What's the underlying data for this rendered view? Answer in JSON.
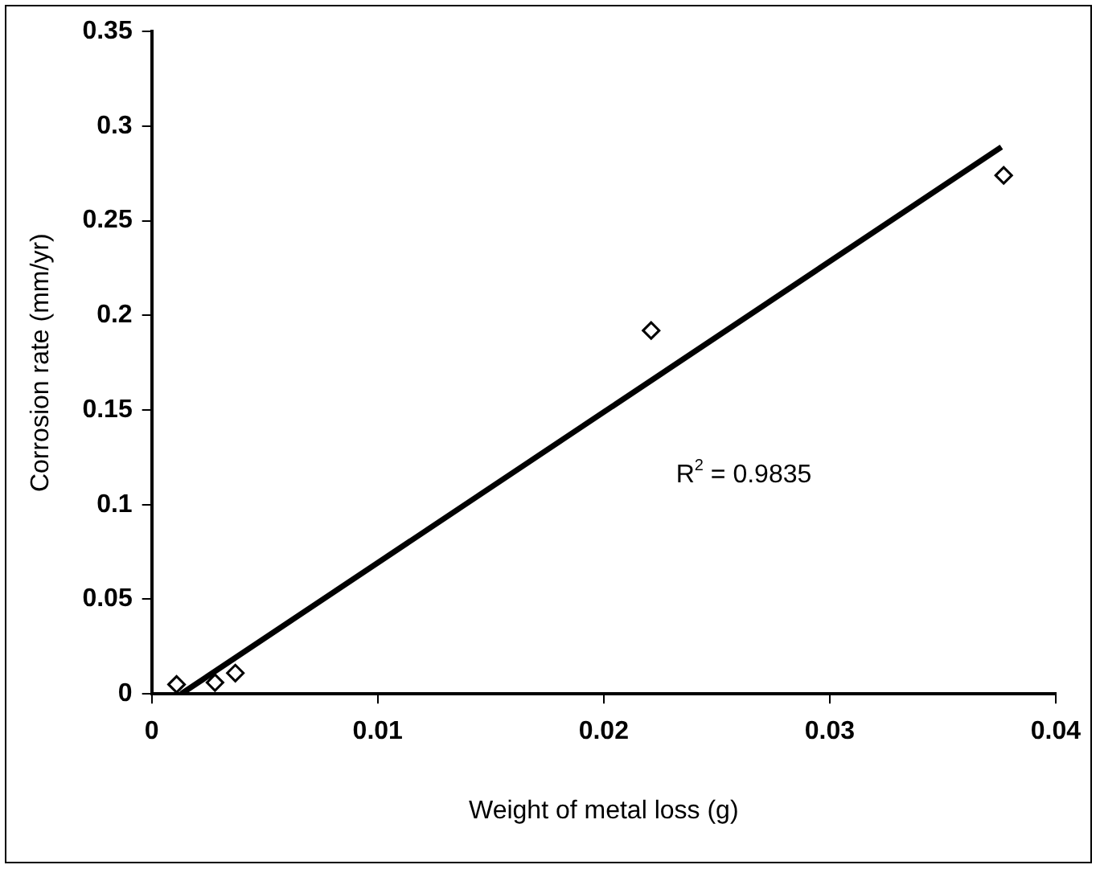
{
  "chart_data": {
    "type": "scatter",
    "xlabel": "Weight of metal loss (g)",
    "ylabel": "Corrosion rate (mm/yr)",
    "xlim": [
      0,
      0.04
    ],
    "xticks": [
      0,
      0.01,
      0.02,
      0.03,
      0.04
    ],
    "ylim": [
      0,
      0.35
    ],
    "yticks": [
      0,
      0.05,
      0.1,
      0.15,
      0.2,
      0.25,
      0.3,
      0.35
    ],
    "grid": false,
    "legend": false,
    "marker": "diamond",
    "series": [
      {
        "color": "#000000",
        "x": [
          0.0011,
          0.0028,
          0.0037,
          0.0221,
          0.0377
        ],
        "values": [
          0.005,
          0.006,
          0.011,
          0.192,
          0.274
        ]
      },
      {
        "type": "line",
        "color": "#000000",
        "marker": "none",
        "x": [
          0.0013,
          0.0376
        ],
        "values": [
          0,
          0.289
        ]
      }
    ],
    "annotations": [
      "R$^{2}$ = 0.9835"
    ]
  }
}
